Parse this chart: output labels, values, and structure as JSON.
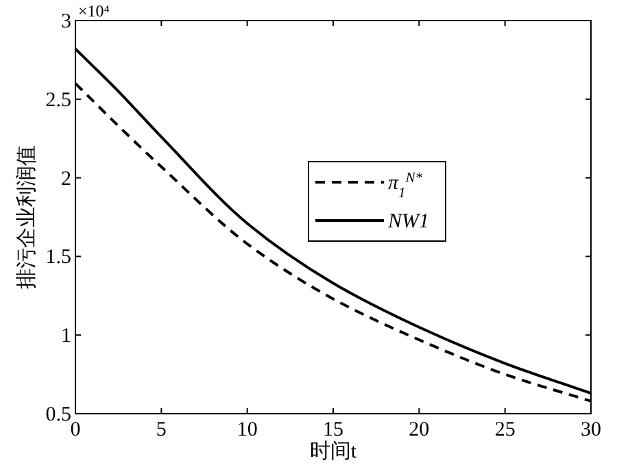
{
  "chart_data": {
    "type": "line",
    "xlabel": "时间t",
    "ylabel": "排污企业利润值",
    "annotations": [
      "×10⁴"
    ],
    "x": [
      0,
      2.5,
      5,
      10,
      15,
      20,
      25,
      30
    ],
    "series": [
      {
        "name": "π$_{1}$$^{N*}$",
        "color": "#000000",
        "line_style": "dashed",
        "values": [
          2.6,
          2.33,
          2.07,
          1.58,
          1.23,
          0.97,
          0.75,
          0.58
        ]
      },
      {
        "name": "NW1",
        "color": "#000000",
        "line_style": "solid",
        "values": [
          2.82,
          2.55,
          2.26,
          1.71,
          1.33,
          1.05,
          0.82,
          0.63
        ]
      }
    ],
    "xlim": [
      0,
      30
    ],
    "ylim": [
      0.5,
      3
    ],
    "xticks": [
      0,
      5,
      10,
      15,
      20,
      25,
      30
    ],
    "yticks": [
      0.5,
      1,
      1.5,
      2,
      2.5,
      3
    ],
    "legend": "right"
  }
}
